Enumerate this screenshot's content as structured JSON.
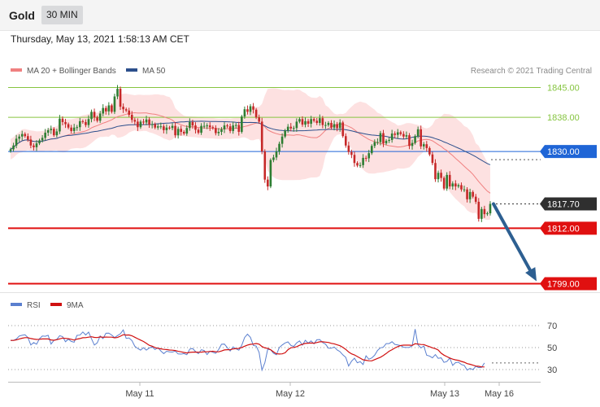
{
  "header": {
    "title": "Gold",
    "timeframe": "30 MIN"
  },
  "subheader": {
    "datetime": "Thursday, May 13, 2021 1:58:13 AM CET"
  },
  "legend": {
    "ma20_label": "MA 20 + Bollinger Bands",
    "ma50_label": "MA 50",
    "credit": "Research © 2021 Trading Central"
  },
  "colors": {
    "ma20": "#f08080",
    "ma50": "#2c4f8c",
    "band_fill": "#fde1e1",
    "up_candle": "#2e7d32",
    "down_candle": "#c62828",
    "resistance": "#86c540",
    "pivot": "#1f65d6",
    "support": "#e01010",
    "arrow": "#2d5f91",
    "rsi": "#5a7fcf",
    "rsi_ma": "#d01010"
  },
  "chart_data": [
    {
      "type": "candlestick",
      "title": "Gold",
      "timeframe": "30 MIN",
      "x_tick_labels": [
        "May 11",
        "May 12",
        "May 13",
        "May 16"
      ],
      "ylim": [
        1796,
        1848
      ],
      "levels": [
        {
          "value": 1845.0,
          "label": "1845.00",
          "style": "resistance"
        },
        {
          "value": 1838.0,
          "label": "1838.00",
          "style": "resistance"
        },
        {
          "value": 1830.0,
          "label": "1830.00",
          "style": "pivot"
        },
        {
          "value": 1817.7,
          "label": "1817.70",
          "style": "last"
        },
        {
          "value": 1812.0,
          "label": "1812.00",
          "style": "support"
        },
        {
          "value": 1799.0,
          "label": "1799.00",
          "style": "support"
        }
      ],
      "last_price": 1817.7,
      "projection": {
        "from": 1817.7,
        "to": 1799.0
      },
      "series": [
        {
          "name": "MA 20 + Bollinger Bands"
        },
        {
          "name": "MA 50"
        }
      ],
      "close": [
        1830.5,
        1831.4,
        1833.0,
        1833.5,
        1834.1,
        1833.6,
        1832.8,
        1831.4,
        1831.0,
        1831.9,
        1832.6,
        1833.2,
        1834.4,
        1835.0,
        1835.3,
        1833.8,
        1834.7,
        1837.7,
        1836.9,
        1836.4,
        1835.6,
        1834.8,
        1835.6,
        1835.7,
        1837.1,
        1836.9,
        1836.2,
        1837.6,
        1839.3,
        1838.0,
        1837.2,
        1838.9,
        1840.2,
        1839.4,
        1840.8,
        1839.3,
        1842.9,
        1844.7,
        1840.5,
        1839.9,
        1839.6,
        1838.6,
        1837.4,
        1837.0,
        1835.7,
        1837.0,
        1836.8,
        1837.5,
        1836.3,
        1836.4,
        1835.6,
        1835.9,
        1835.9,
        1835.0,
        1835.6,
        1835.5,
        1836.0,
        1833.8,
        1835.3,
        1834.6,
        1834.2,
        1835.5,
        1836.9,
        1836.1,
        1835.1,
        1834.4,
        1836.0,
        1836.0,
        1836.1,
        1835.7,
        1835.5,
        1834.3,
        1834.6,
        1835.2,
        1836.1,
        1835.9,
        1834.8,
        1836.1,
        1836.2,
        1834.6,
        1838.2,
        1839.9,
        1839.3,
        1840.6,
        1839.8,
        1838.0,
        1837.0,
        1830.0,
        1823.4,
        1821.8,
        1828.0,
        1828.6,
        1830.0,
        1831.8,
        1833.5,
        1834.9,
        1835.8,
        1835.4,
        1835.5,
        1837.0,
        1837.6,
        1836.3,
        1837.1,
        1836.5,
        1837.6,
        1837.2,
        1836.7,
        1837.8,
        1836.2,
        1836.2,
        1836.7,
        1835.6,
        1836.4,
        1835.5,
        1836.8,
        1833.6,
        1831.4,
        1829.9,
        1829.2,
        1827.3,
        1826.7,
        1826.8,
        1828.5,
        1828.4,
        1829.6,
        1831.3,
        1832.2,
        1832.2,
        1834.3,
        1831.9,
        1832.5,
        1832.7,
        1834.2,
        1833.9,
        1834.5,
        1834.1,
        1833.5,
        1833.8,
        1831.3,
        1832.0,
        1833.6,
        1835.2,
        1831.2,
        1831.7,
        1830.8,
        1829.3,
        1827.3,
        1823.5,
        1825.0,
        1823.8,
        1821.3,
        1824.5,
        1821.8,
        1822.5,
        1821.8,
        1822.1,
        1821.1,
        1821.1,
        1818.8,
        1820.5,
        1819.4,
        1818.2,
        1814.2,
        1816.5,
        1815.3,
        1815.5,
        1817.7
      ]
    },
    {
      "type": "line",
      "title": "RSI",
      "series": [
        {
          "name": "RSI"
        },
        {
          "name": "9MA"
        }
      ],
      "ylim": [
        25,
        75
      ],
      "y_tick_labels": [
        "70",
        "50",
        "30"
      ],
      "rsi": [
        56.5,
        56.5,
        57.8,
        60.5,
        61.2,
        61.6,
        59.2,
        52.4,
        54.5,
        53.1,
        58.0,
        60.5,
        60.3,
        61.2,
        53.2,
        56.5,
        57.5,
        60.8,
        60.0,
        55.3,
        57.6,
        55.6,
        54.9,
        61.1,
        61.3,
        64.2,
        61.5,
        64.1,
        58.1,
        52.3,
        54.3,
        60.6,
        58.2,
        63.0,
        63.2,
        61.4,
        59.1,
        60.9,
        62.6,
        66.1,
        58.4,
        58.8,
        56.4,
        51.2,
        49.2,
        47.7,
        49.9,
        47.7,
        49.6,
        50.6,
        48.2,
        49.9,
        47.0,
        44.5,
        46.7,
        46.1,
        45.9,
        46.8,
        44.2,
        44.1,
        44.5,
        43.5,
        48.6,
        49.2,
        46.4,
        44.5,
        48.0,
        47.3,
        43.6,
        46.8,
        45.7,
        44.8,
        48.2,
        53.0,
        53.2,
        49.9,
        46.9,
        50.6,
        49.0,
        47.6,
        52.0,
        59.2,
        62.2,
        59.3,
        52.0,
        51.4,
        45.6,
        29.5,
        36.3,
        48.5,
        48.0,
        44.8,
        43.5,
        50.0,
        52.4,
        54.2,
        55.2,
        52.0,
        51.0,
        54.3,
        56.1,
        52.2,
        56.6,
        54.1,
        56.1,
        53.5,
        57.1,
        57.3,
        54.5,
        53.1,
        49.4,
        49.4,
        50.5,
        47.9,
        46.3,
        43.4,
        41.1,
        33.2,
        37.6,
        40.3,
        36.2,
        37.2,
        34.6,
        42.5,
        39.4,
        40.6,
        43.0,
        47.4,
        49.8,
        50.3,
        53.6,
        53.6,
        55.3,
        52.9,
        52.4,
        51.8,
        50.3,
        50.1,
        50.2,
        51.6,
        66.8,
        52.5,
        49.7,
        51.4,
        43.0,
        42.3,
        40.7,
        43.6,
        40.2,
        40.7,
        36.5,
        37.3,
        40.5,
        33.8,
        36.3,
        36.7,
        34.6,
        33.8,
        29.5,
        31.0,
        29.9,
        32.9,
        31.8,
        32.0,
        36.0
      ]
    }
  ]
}
